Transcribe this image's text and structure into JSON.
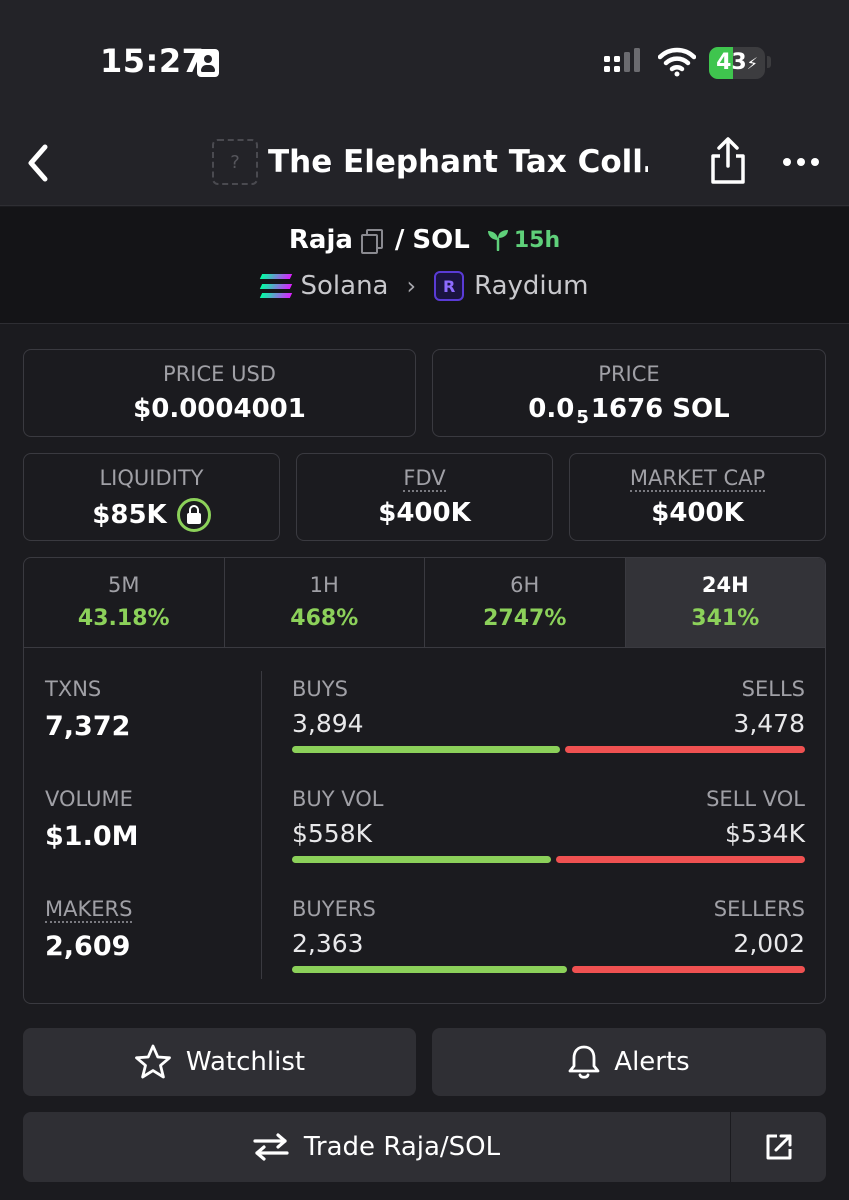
{
  "status_bar": {
    "time": "15:27",
    "battery": "43",
    "battery_level": 0.43
  },
  "nav": {
    "title": "The Elephant Tax Coll…",
    "placeholder_icon": "?"
  },
  "pair": {
    "base": "Raja",
    "separator": "/",
    "quote": "SOL",
    "age": "15h",
    "chain": "Solana",
    "dex": "Raydium",
    "dex_icon_letter": "R"
  },
  "stats": {
    "price_usd_label": "PRICE USD",
    "price_usd": "$0.0004001",
    "price_label": "PRICE",
    "price_prefix": "0.0",
    "price_zeros": "5",
    "price_suffix": "1676 SOL",
    "liquidity_label": "LIQUIDITY",
    "liquidity": "$85K",
    "fdv_label": "FDV",
    "fdv": "$400K",
    "mcap_label": "MARKET CAP",
    "mcap": "$400K"
  },
  "periods": [
    {
      "label": "5M",
      "value": "43.18%"
    },
    {
      "label": "1H",
      "value": "468%"
    },
    {
      "label": "6H",
      "value": "2747%"
    },
    {
      "label": "24H",
      "value": "341%"
    }
  ],
  "active_period": "24H",
  "metrics": {
    "txns_label": "TXNS",
    "txns": "7,372",
    "volume_label": "VOLUME",
    "volume": "$1.0M",
    "makers_label": "MAKERS",
    "makers": "2,609"
  },
  "splits": [
    {
      "left_label": "BUYS",
      "right_label": "SELLS",
      "left_value": "3,894",
      "right_value": "3,478",
      "buy_ratio": 0.528
    },
    {
      "left_label": "BUY VOL",
      "right_label": "SELL VOL",
      "left_value": "$558K",
      "right_value": "$534K",
      "buy_ratio": 0.511
    },
    {
      "left_label": "BUYERS",
      "right_label": "SELLERS",
      "left_value": "2,363",
      "right_value": "2,002",
      "buy_ratio": 0.541
    }
  ],
  "actions": {
    "watchlist": "Watchlist",
    "alerts": "Alerts",
    "trade": "Trade Raja/SOL"
  },
  "colors": {
    "buy": "#8cd15a",
    "sell": "#ef5151",
    "positive": "#8cd15a",
    "age": "#5fd07a"
  }
}
